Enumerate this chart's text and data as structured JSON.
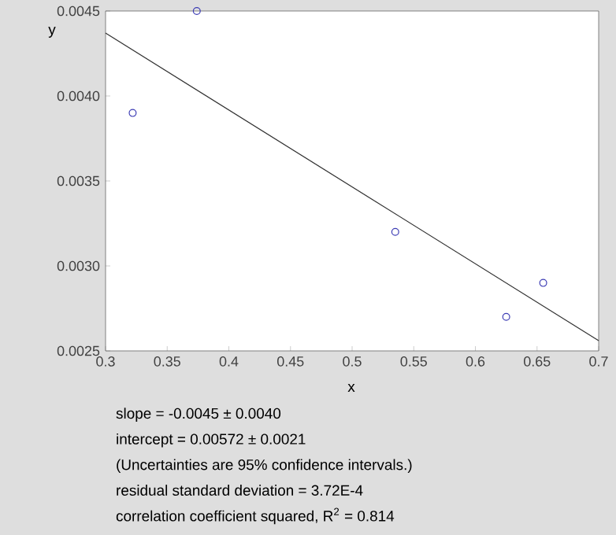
{
  "chart_data": {
    "type": "scatter",
    "xlabel": "x",
    "ylabel": "y",
    "xlim": [
      0.3,
      0.7
    ],
    "ylim": [
      0.0025,
      0.0045
    ],
    "xticks": [
      0.3,
      0.35,
      0.4,
      0.45,
      0.5,
      0.55,
      0.6,
      0.65,
      0.7
    ],
    "yticks": [
      {
        "value": 0.0025,
        "label": "0.0025"
      },
      {
        "value": 0.003,
        "label": "0.0030"
      },
      {
        "value": 0.0035,
        "label": "0.0035"
      },
      {
        "value": 0.004,
        "label": "0.0040"
      },
      {
        "value": 0.0045,
        "label": "0.0045"
      }
    ],
    "grid": false,
    "marker": "circle",
    "series": [
      {
        "color": "#3c3cb4",
        "x": [
          0.322,
          0.374,
          0.535,
          0.625,
          0.655
        ],
        "values": [
          0.0039,
          0.0045,
          0.0032,
          0.0027,
          0.0029
        ]
      },
      {
        "type": "line",
        "color": "#303030",
        "marker": "none",
        "x": [
          0.3,
          0.7
        ],
        "values": [
          0.00437,
          0.00256
        ]
      }
    ],
    "annotations": [
      "slope = -0.0045  ± 0.0040",
      "intercept = 0.00572  ± 0.0021",
      "(Uncertainties are 95% confidence intervals.)",
      "residual standard deviation = 3.72E-4",
      "correlation coefficient squared, R$^{2}$ = 0.814"
    ]
  }
}
